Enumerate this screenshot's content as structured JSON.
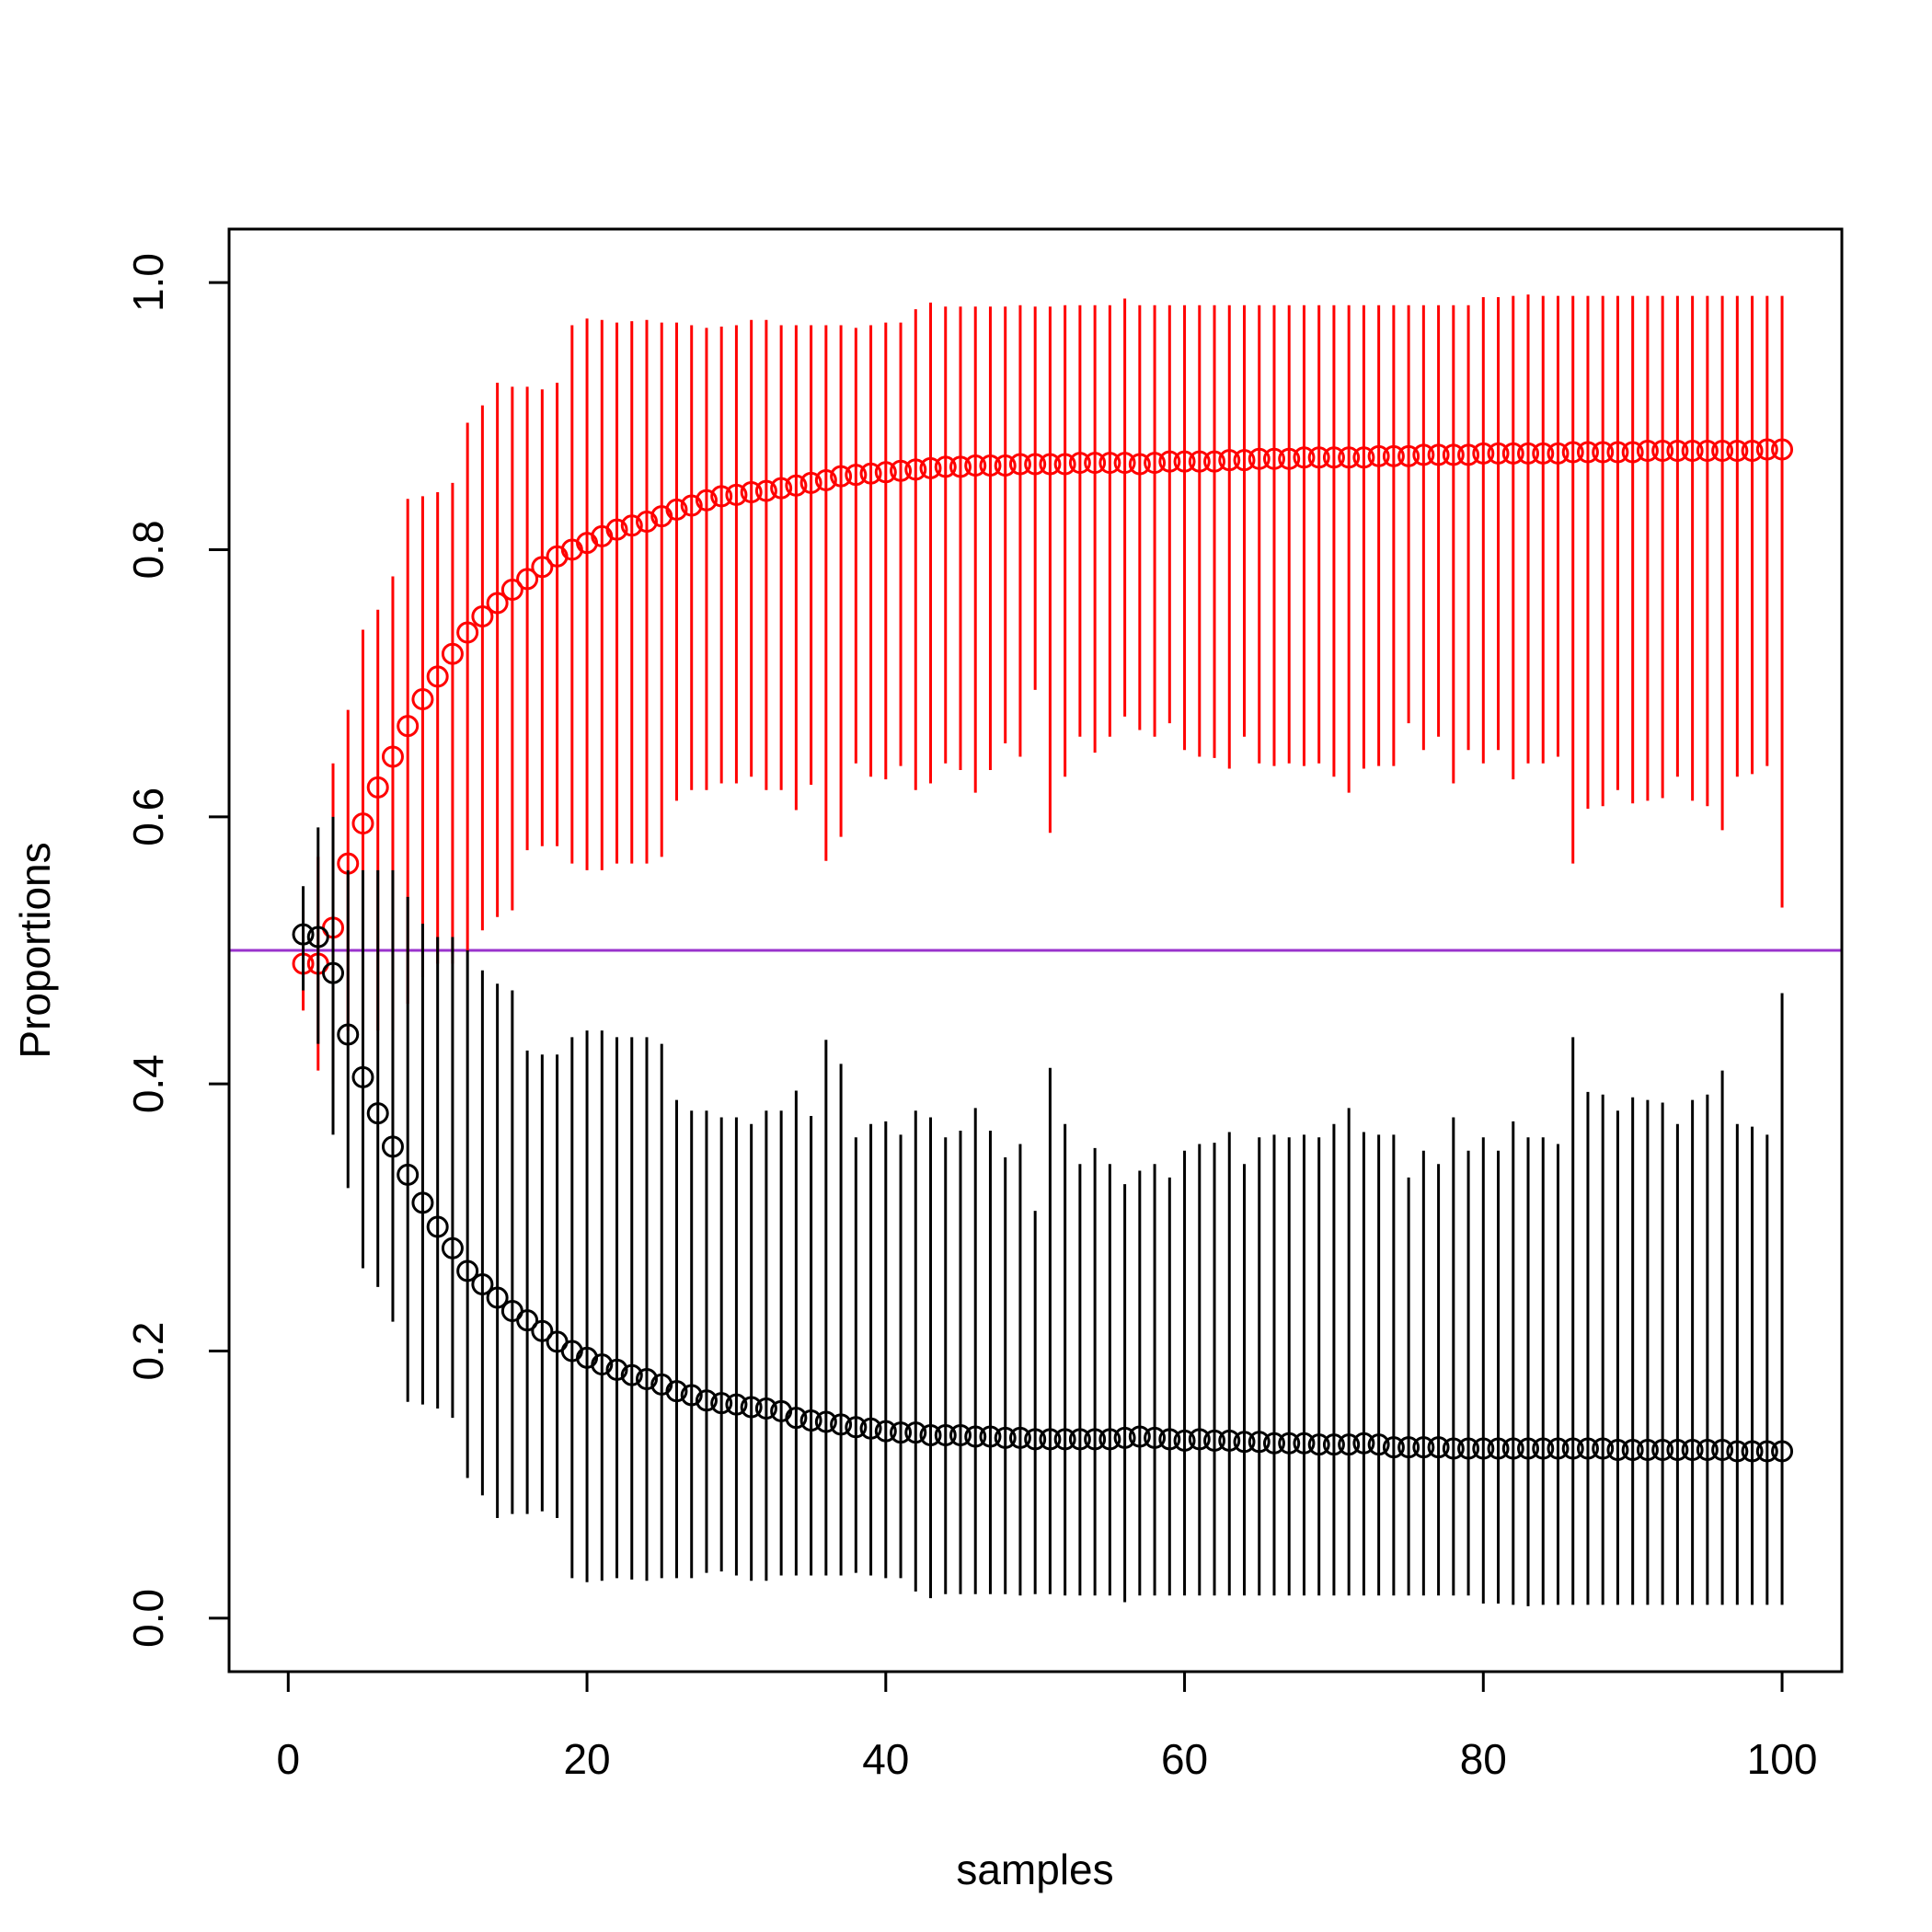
{
  "chart_data": {
    "type": "scatter",
    "title": "",
    "xlabel": "samples",
    "ylabel": "Proportions",
    "xlim": [
      -3.96,
      104
    ],
    "ylim": [
      -0.04,
      1.04
    ],
    "xticks": [
      0,
      20,
      40,
      60,
      80,
      100
    ],
    "yticks": [
      0.0,
      0.2,
      0.4,
      0.6,
      0.8,
      1.0
    ],
    "xtick_labels": [
      "0",
      "20",
      "40",
      "60",
      "80",
      "100"
    ],
    "ytick_labels": [
      "0.0",
      "0.2",
      "0.4",
      "0.6",
      "0.8",
      "1.0"
    ],
    "grid": false,
    "reference_line": {
      "y": 0.5,
      "color": "#9933cc"
    },
    "series": [
      {
        "color": "#ff0000",
        "x": [
          1,
          2,
          3,
          4,
          5,
          6,
          7,
          8,
          9,
          10,
          11,
          12,
          13,
          14,
          15,
          16,
          17,
          18,
          19,
          20,
          21,
          22,
          23,
          24,
          25,
          26,
          27,
          28,
          29,
          30,
          31,
          32,
          33,
          34,
          35,
          36,
          37,
          38,
          39,
          40,
          41,
          42,
          43,
          44,
          45,
          46,
          47,
          48,
          49,
          50,
          51,
          52,
          53,
          54,
          55,
          56,
          57,
          58,
          59,
          60,
          61,
          62,
          63,
          64,
          65,
          66,
          67,
          68,
          69,
          70,
          71,
          72,
          73,
          74,
          75,
          76,
          77,
          78,
          79,
          80,
          81,
          82,
          83,
          84,
          85,
          86,
          87,
          88,
          89,
          90,
          91,
          92,
          93,
          94,
          95,
          96,
          97,
          98,
          99,
          100
        ],
        "y": [
          0.49,
          0.49,
          0.517,
          0.565,
          0.595,
          0.622,
          0.645,
          0.668,
          0.688,
          0.705,
          0.722,
          0.738,
          0.75,
          0.76,
          0.77,
          0.778,
          0.787,
          0.795,
          0.8,
          0.805,
          0.81,
          0.815,
          0.818,
          0.821,
          0.825,
          0.83,
          0.833,
          0.837,
          0.84,
          0.841,
          0.843,
          0.844,
          0.846,
          0.848,
          0.85,
          0.852,
          0.855,
          0.856,
          0.857,
          0.858,
          0.859,
          0.86,
          0.861,
          0.862,
          0.862,
          0.863,
          0.863,
          0.863,
          0.864,
          0.864,
          0.864,
          0.864,
          0.865,
          0.865,
          0.865,
          0.865,
          0.864,
          0.865,
          0.866,
          0.866,
          0.866,
          0.866,
          0.867,
          0.867,
          0.868,
          0.868,
          0.868,
          0.869,
          0.869,
          0.869,
          0.869,
          0.869,
          0.87,
          0.87,
          0.87,
          0.871,
          0.871,
          0.871,
          0.871,
          0.872,
          0.872,
          0.872,
          0.872,
          0.872,
          0.872,
          0.873,
          0.873,
          0.873,
          0.873,
          0.873,
          0.874,
          0.874,
          0.874,
          0.874,
          0.874,
          0.874,
          0.874,
          0.874,
          0.875,
          0.875
        ],
        "lower": [
          0.455,
          0.41,
          0.4,
          0.44,
          0.44,
          0.44,
          0.44,
          0.46,
          0.48,
          0.49,
          0.49,
          0.5,
          0.515,
          0.525,
          0.53,
          0.575,
          0.578,
          0.578,
          0.565,
          0.56,
          0.56,
          0.565,
          0.565,
          0.565,
          0.57,
          0.612,
          0.62,
          0.62,
          0.625,
          0.625,
          0.63,
          0.62,
          0.62,
          0.605,
          0.624,
          0.567,
          0.585,
          0.64,
          0.63,
          0.628,
          0.638,
          0.62,
          0.625,
          0.64,
          0.635,
          0.618,
          0.635,
          0.655,
          0.645,
          0.695,
          0.588,
          0.63,
          0.66,
          0.648,
          0.66,
          0.675,
          0.665,
          0.66,
          0.67,
          0.65,
          0.645,
          0.644,
          0.636,
          0.66,
          0.64,
          0.638,
          0.64,
          0.638,
          0.64,
          0.63,
          0.618,
          0.636,
          0.638,
          0.638,
          0.67,
          0.65,
          0.66,
          0.625,
          0.65,
          0.64,
          0.65,
          0.628,
          0.64,
          0.64,
          0.645,
          0.565,
          0.606,
          0.608,
          0.62,
          0.61,
          0.612,
          0.614,
          0.63,
          0.612,
          0.608,
          0.59,
          0.63,
          0.632,
          0.638,
          0.532
        ],
        "upper": [
          0.53,
          0.57,
          0.64,
          0.68,
          0.74,
          0.755,
          0.78,
          0.838,
          0.84,
          0.843,
          0.85,
          0.895,
          0.908,
          0.925,
          0.922,
          0.922,
          0.92,
          0.925,
          0.968,
          0.973,
          0.972,
          0.97,
          0.971,
          0.972,
          0.97,
          0.97,
          0.968,
          0.966,
          0.967,
          0.968,
          0.972,
          0.972,
          0.968,
          0.968,
          0.968,
          0.968,
          0.968,
          0.966,
          0.968,
          0.97,
          0.97,
          0.98,
          0.985,
          0.982,
          0.982,
          0.982,
          0.982,
          0.982,
          0.983,
          0.982,
          0.982,
          0.983,
          0.983,
          0.983,
          0.983,
          0.988,
          0.983,
          0.983,
          0.983,
          0.983,
          0.983,
          0.983,
          0.983,
          0.983,
          0.983,
          0.983,
          0.983,
          0.983,
          0.983,
          0.983,
          0.983,
          0.983,
          0.983,
          0.983,
          0.983,
          0.983,
          0.983,
          0.983,
          0.983,
          0.989,
          0.989,
          0.99,
          0.991,
          0.99,
          0.99,
          0.99,
          0.99,
          0.99,
          0.99,
          0.99,
          0.99,
          0.99,
          0.99,
          0.99,
          0.99,
          0.99,
          0.99,
          0.99,
          0.99,
          0.99
        ]
      },
      {
        "color": "#000000",
        "x": [
          1,
          2,
          3,
          4,
          5,
          6,
          7,
          8,
          9,
          10,
          11,
          12,
          13,
          14,
          15,
          16,
          17,
          18,
          19,
          20,
          21,
          22,
          23,
          24,
          25,
          26,
          27,
          28,
          29,
          30,
          31,
          32,
          33,
          34,
          35,
          36,
          37,
          38,
          39,
          40,
          41,
          42,
          43,
          44,
          45,
          46,
          47,
          48,
          49,
          50,
          51,
          52,
          53,
          54,
          55,
          56,
          57,
          58,
          59,
          60,
          61,
          62,
          63,
          64,
          65,
          66,
          67,
          68,
          69,
          70,
          71,
          72,
          73,
          74,
          75,
          76,
          77,
          78,
          79,
          80,
          81,
          82,
          83,
          84,
          85,
          86,
          87,
          88,
          89,
          90,
          91,
          92,
          93,
          94,
          95,
          96,
          97,
          98,
          99,
          100
        ],
        "y": [
          0.512,
          0.51,
          0.483,
          0.437,
          0.405,
          0.378,
          0.353,
          0.332,
          0.311,
          0.293,
          0.277,
          0.26,
          0.25,
          0.24,
          0.23,
          0.223,
          0.215,
          0.207,
          0.2,
          0.195,
          0.19,
          0.186,
          0.182,
          0.179,
          0.175,
          0.17,
          0.167,
          0.163,
          0.161,
          0.16,
          0.158,
          0.157,
          0.155,
          0.15,
          0.148,
          0.147,
          0.145,
          0.143,
          0.142,
          0.14,
          0.139,
          0.139,
          0.137,
          0.137,
          0.137,
          0.136,
          0.136,
          0.135,
          0.135,
          0.134,
          0.134,
          0.134,
          0.134,
          0.134,
          0.134,
          0.135,
          0.136,
          0.135,
          0.134,
          0.133,
          0.134,
          0.133,
          0.133,
          0.132,
          0.132,
          0.131,
          0.131,
          0.131,
          0.13,
          0.13,
          0.13,
          0.131,
          0.13,
          0.128,
          0.128,
          0.128,
          0.128,
          0.127,
          0.127,
          0.127,
          0.127,
          0.127,
          0.127,
          0.127,
          0.127,
          0.127,
          0.127,
          0.127,
          0.126,
          0.126,
          0.126,
          0.126,
          0.126,
          0.126,
          0.126,
          0.126,
          0.125,
          0.125,
          0.125,
          0.125
        ],
        "lower": [
          0.47,
          0.43,
          0.362,
          0.322,
          0.262,
          0.248,
          0.222,
          0.162,
          0.16,
          0.157,
          0.15,
          0.105,
          0.092,
          0.075,
          0.078,
          0.078,
          0.08,
          0.075,
          0.03,
          0.027,
          0.028,
          0.03,
          0.029,
          0.028,
          0.03,
          0.03,
          0.03,
          0.034,
          0.035,
          0.032,
          0.028,
          0.028,
          0.032,
          0.032,
          0.032,
          0.032,
          0.032,
          0.034,
          0.032,
          0.03,
          0.03,
          0.02,
          0.015,
          0.018,
          0.018,
          0.018,
          0.018,
          0.018,
          0.017,
          0.018,
          0.018,
          0.017,
          0.017,
          0.017,
          0.017,
          0.012,
          0.017,
          0.017,
          0.017,
          0.017,
          0.017,
          0.017,
          0.017,
          0.017,
          0.017,
          0.017,
          0.017,
          0.017,
          0.017,
          0.017,
          0.017,
          0.017,
          0.017,
          0.017,
          0.017,
          0.017,
          0.017,
          0.017,
          0.017,
          0.011,
          0.011,
          0.01,
          0.009,
          0.01,
          0.01,
          0.01,
          0.01,
          0.01,
          0.01,
          0.01,
          0.01,
          0.01,
          0.01,
          0.01,
          0.01,
          0.01,
          0.01,
          0.01,
          0.01,
          0.01
        ],
        "upper": [
          0.548,
          0.592,
          0.6,
          0.56,
          0.56,
          0.56,
          0.56,
          0.54,
          0.52,
          0.51,
          0.51,
          0.5,
          0.485,
          0.475,
          0.47,
          0.425,
          0.422,
          0.422,
          0.435,
          0.44,
          0.44,
          0.435,
          0.435,
          0.435,
          0.43,
          0.388,
          0.38,
          0.38,
          0.375,
          0.375,
          0.37,
          0.38,
          0.38,
          0.395,
          0.376,
          0.433,
          0.415,
          0.36,
          0.37,
          0.372,
          0.362,
          0.38,
          0.375,
          0.36,
          0.365,
          0.382,
          0.365,
          0.345,
          0.355,
          0.305,
          0.412,
          0.37,
          0.34,
          0.352,
          0.34,
          0.325,
          0.335,
          0.34,
          0.33,
          0.35,
          0.355,
          0.356,
          0.364,
          0.34,
          0.36,
          0.362,
          0.36,
          0.362,
          0.36,
          0.37,
          0.382,
          0.364,
          0.362,
          0.362,
          0.33,
          0.35,
          0.34,
          0.375,
          0.35,
          0.36,
          0.35,
          0.372,
          0.36,
          0.36,
          0.355,
          0.435,
          0.394,
          0.392,
          0.38,
          0.39,
          0.388,
          0.386,
          0.37,
          0.388,
          0.392,
          0.41,
          0.37,
          0.368,
          0.362,
          0.468
        ]
      }
    ]
  }
}
